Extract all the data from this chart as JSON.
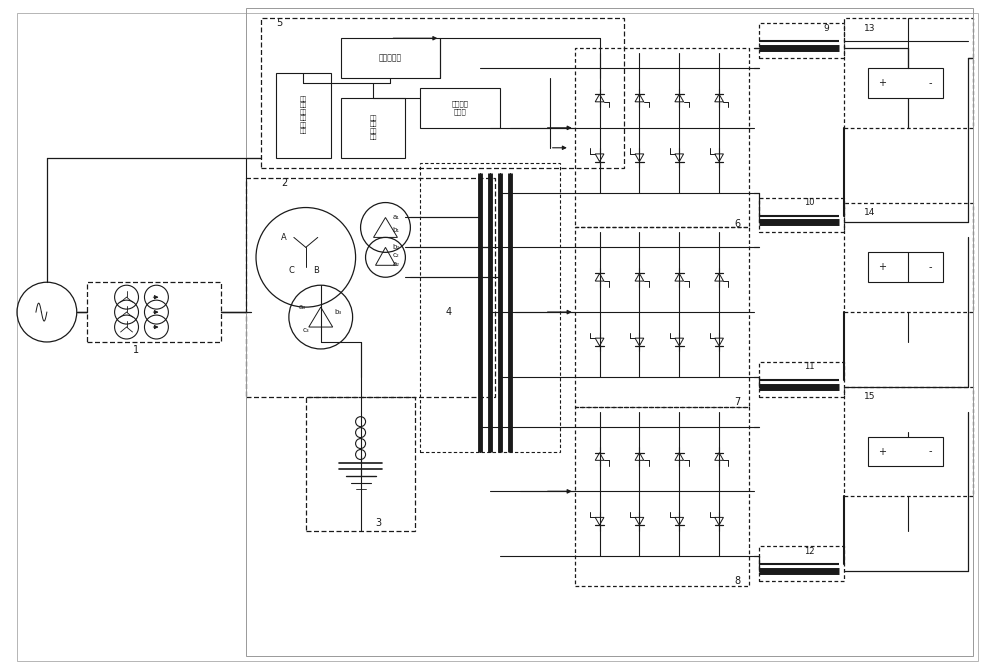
{
  "bg": "#ffffff",
  "lc": "#1a1a1a",
  "figsize": [
    10.0,
    6.72
  ],
  "dpi": 100,
  "xlim": [
    0,
    100
  ],
  "ylim": [
    0,
    67.2
  ]
}
